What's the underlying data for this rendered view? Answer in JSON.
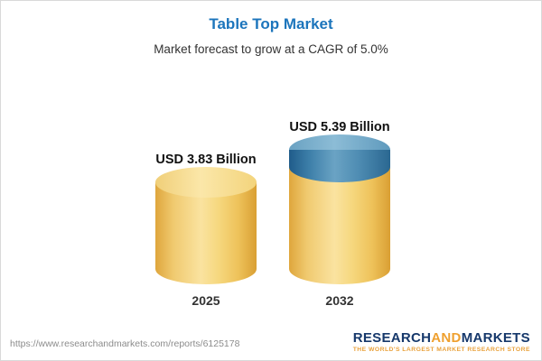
{
  "header": {
    "title": "Table Top Market",
    "subtitle": "Market forecast to grow at a CAGR of 5.0%"
  },
  "chart_data": {
    "type": "bar",
    "subtype": "3d-cylinder",
    "title": "Table Top Market",
    "subtitle": "Market forecast to grow at a CAGR of 5.0%",
    "categories": [
      "2025",
      "2032"
    ],
    "values": [
      3.83,
      5.39
    ],
    "value_labels": [
      "USD 3.83 Billion",
      "USD 5.39 Billion"
    ],
    "unit": "USD Billion",
    "cagr": "5.0%",
    "xlabel": "",
    "ylabel": "",
    "ylim": [
      0,
      6
    ],
    "grid": false,
    "legend": "none",
    "colors": {
      "base_segment": "#f3cd68",
      "growth_segment": "#3a7ca8"
    }
  },
  "footer": {
    "url": "https://www.researchandmarkets.com/reports/6125178",
    "logo": {
      "research": "RESEARCH",
      "and": "AND",
      "markets": "MARKETS",
      "tagline": "THE WORLD'S LARGEST MARKET RESEARCH STORE"
    }
  }
}
